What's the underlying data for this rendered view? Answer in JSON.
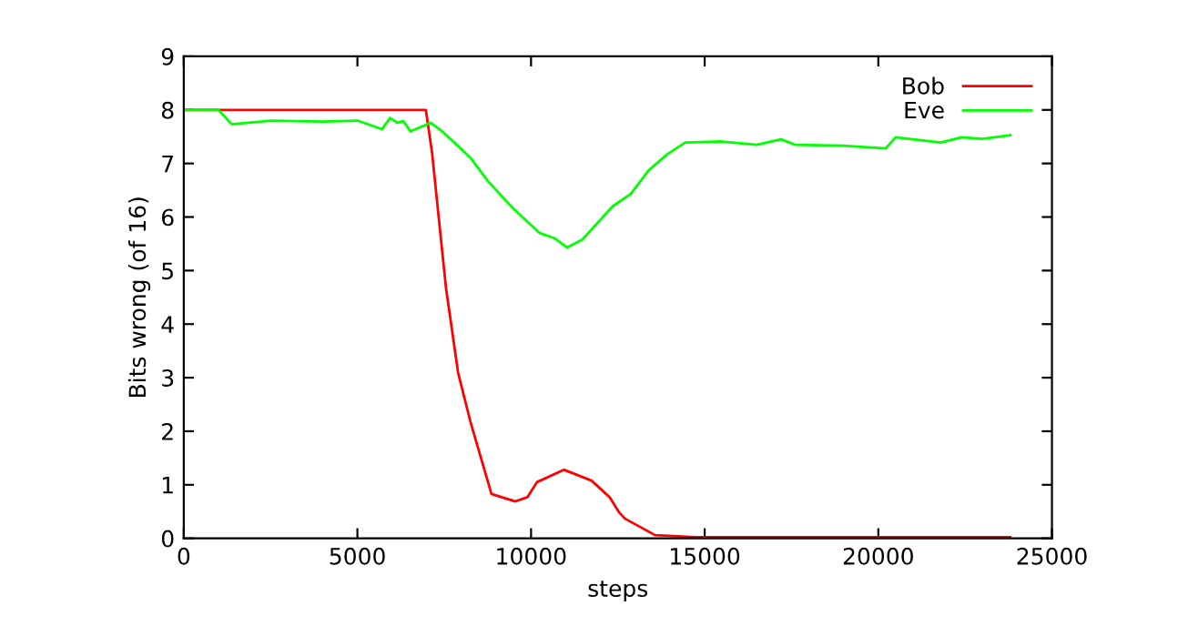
{
  "chart_data": {
    "type": "line",
    "xlabel": "steps",
    "ylabel": "Bits wrong (of 16)",
    "xlim": [
      0,
      25000
    ],
    "ylim": [
      0,
      9
    ],
    "xticks": [
      0,
      5000,
      10000,
      15000,
      20000,
      25000
    ],
    "yticks": [
      0,
      1,
      2,
      3,
      4,
      5,
      6,
      7,
      8,
      9
    ],
    "grid": false,
    "legend": "top right",
    "series": [
      {
        "name": "Bob",
        "color": "#ff0000",
        "x": [
          0,
          3000,
          6970,
          7150,
          7370,
          7550,
          7900,
          8250,
          8860,
          9550,
          9900,
          10170,
          10950,
          11740,
          12260,
          12530,
          12700,
          13570,
          14800,
          18000,
          21000,
          23800
        ],
        "values": [
          8,
          8,
          8,
          7.2,
          5.81,
          4.68,
          3.09,
          2.19,
          0.83,
          0.69,
          0.77,
          1.05,
          1.28,
          1.08,
          0.77,
          0.49,
          0.37,
          0.06,
          0.02,
          0.02,
          0.02,
          0.02
        ]
      },
      {
        "name": "Eve",
        "color": "#00ff00",
        "x": [
          0,
          1000,
          1380,
          2500,
          4000,
          5000,
          5710,
          5940,
          6150,
          6320,
          6530,
          7110,
          7460,
          8250,
          8770,
          9470,
          10250,
          10690,
          11040,
          11480,
          12350,
          12870,
          13400,
          13920,
          14440,
          15500,
          16500,
          17200,
          17600,
          19000,
          20210,
          20500,
          21800,
          22400,
          23000,
          23800
        ],
        "values": [
          8,
          8,
          7.73,
          7.8,
          7.78,
          7.8,
          7.64,
          7.85,
          7.76,
          7.79,
          7.6,
          7.76,
          7.59,
          7.11,
          6.66,
          6.17,
          5.7,
          5.6,
          5.43,
          5.58,
          6.2,
          6.43,
          6.88,
          7.17,
          7.39,
          7.41,
          7.35,
          7.45,
          7.35,
          7.33,
          7.28,
          7.49,
          7.39,
          7.49,
          7.46,
          7.53
        ]
      }
    ]
  }
}
